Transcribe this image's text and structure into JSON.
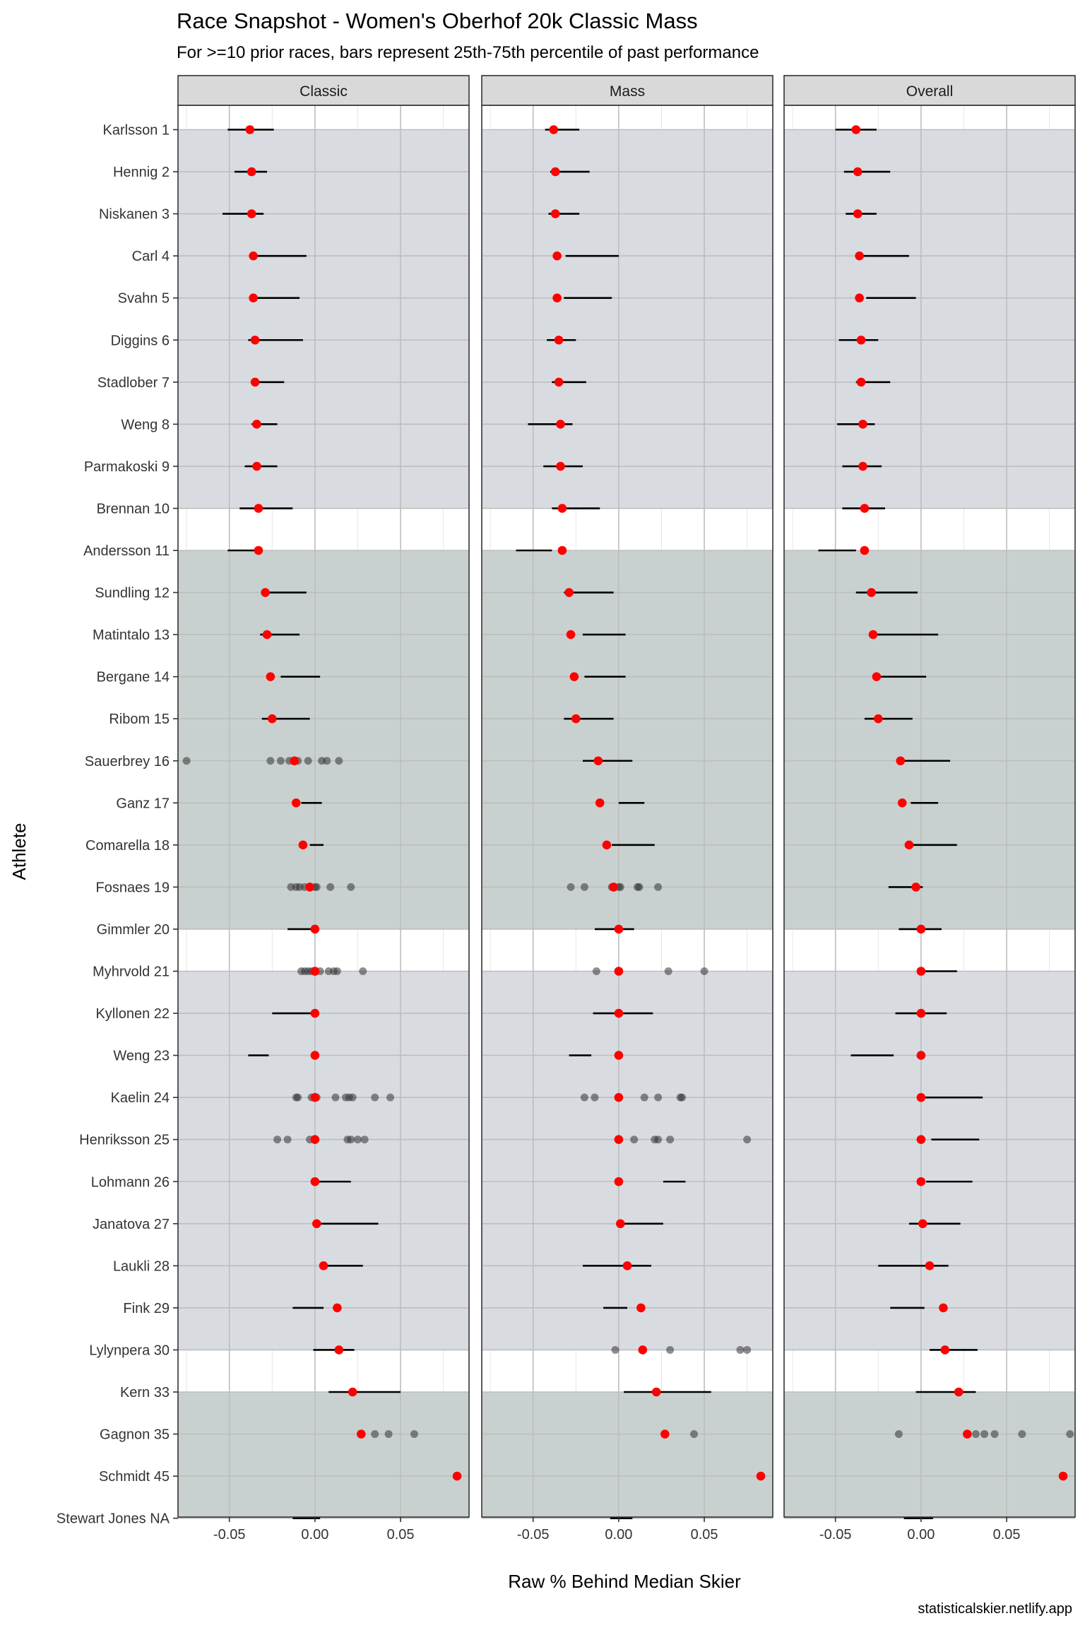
{
  "chart_data": {
    "type": "scatter",
    "title": "Race Snapshot -  Women's Oberhof 20k Classic Mass",
    "subtitle": "For >=10 prior races, bars represent 25th-75th percentile of past performance",
    "xlabel": "Raw % Behind Median Skier",
    "ylabel": "Athlete",
    "caption": "statisticalskier.netlify.app",
    "panels": [
      "Classic",
      "Mass",
      "Overall"
    ],
    "xlim": [
      -0.08,
      0.09
    ],
    "x_ticks": [
      -0.05,
      0.0,
      0.05
    ],
    "x_tick_labels": [
      "-0.05",
      "0.00",
      "0.05"
    ],
    "athletes": [
      "Karlsson 1",
      "Hennig 2",
      "Niskanen 3",
      "Carl 4",
      "Svahn 5",
      "Diggins 6",
      "Stadlober 7",
      "Weng 8",
      "Parmakoski 9",
      "Brennan 10",
      "Andersson 11",
      "Sundling 12",
      "Matintalo 13",
      "Bergane 14",
      "Ribom 15",
      "Sauerbrey 16",
      "Ganz 17",
      "Comarella 18",
      "Fosnaes 19",
      "Gimmler 20",
      "Myhrvold 21",
      "Kyllonen 22",
      "Weng 23",
      "Kaelin 24",
      "Henriksson 25",
      "Lohmann 26",
      "Janatova 27",
      "Laukli 28",
      "Fink 29",
      "Lylynpera 30",
      "Kern 33",
      "Gagnon 35",
      "Schmidt 45",
      "Stewart Jones NA"
    ],
    "bands": [
      {
        "from": 0,
        "to": 9,
        "color": "#d8dce1"
      },
      {
        "from": 10,
        "to": 19,
        "color": "#c9d1d0"
      },
      {
        "from": 20,
        "to": 29,
        "color": "#d8dce1"
      },
      {
        "from": 30,
        "to": 33,
        "color": "#c9d1d0"
      }
    ],
    "red_points": [
      -0.038,
      -0.037,
      -0.037,
      -0.036,
      -0.036,
      -0.035,
      -0.035,
      -0.034,
      -0.034,
      -0.033,
      -0.033,
      -0.029,
      -0.028,
      -0.026,
      -0.025,
      -0.012,
      -0.011,
      -0.007,
      -0.003,
      0.0,
      0.0,
      0.0,
      0.0,
      0.0,
      0.0,
      0.0,
      0.001,
      0.005,
      0.013,
      0.014,
      0.022,
      0.027,
      0.083,
      null
    ],
    "iqr": {
      "Classic": [
        [
          -0.051,
          -0.024
        ],
        [
          -0.047,
          -0.028
        ],
        [
          -0.054,
          -0.03
        ],
        [
          -0.036,
          -0.005
        ],
        [
          -0.036,
          -0.009
        ],
        [
          -0.039,
          -0.007
        ],
        [
          -0.035,
          -0.018
        ],
        [
          -0.037,
          -0.022
        ],
        [
          -0.041,
          -0.022
        ],
        [
          -0.044,
          -0.013
        ],
        [
          -0.051,
          -0.035
        ],
        [
          -0.03,
          -0.005
        ],
        [
          -0.032,
          -0.009
        ],
        [
          -0.02,
          0.003
        ],
        [
          -0.031,
          -0.003
        ],
        null,
        [
          -0.008,
          0.004
        ],
        [
          -0.003,
          0.005
        ],
        null,
        [
          -0.016,
          0.0
        ],
        null,
        [
          -0.025,
          0.0
        ],
        [
          -0.039,
          -0.027
        ],
        null,
        null,
        [
          0.0,
          0.021
        ],
        [
          0.0,
          0.037
        ],
        [
          0.004,
          0.028
        ],
        [
          -0.013,
          0.005
        ],
        [
          -0.001,
          0.023
        ],
        [
          0.008,
          0.05
        ],
        null,
        null,
        [
          -0.013,
          0.003
        ]
      ],
      "Mass": [
        [
          -0.043,
          -0.023
        ],
        [
          -0.04,
          -0.017
        ],
        [
          -0.041,
          -0.023
        ],
        [
          -0.031,
          0.0
        ],
        [
          -0.032,
          -0.004
        ],
        [
          -0.042,
          -0.025
        ],
        [
          -0.039,
          -0.019
        ],
        [
          -0.053,
          -0.027
        ],
        [
          -0.044,
          -0.021
        ],
        [
          -0.039,
          -0.011
        ],
        [
          -0.06,
          -0.039
        ],
        [
          -0.032,
          -0.003
        ],
        [
          -0.021,
          0.004
        ],
        [
          -0.02,
          0.004
        ],
        [
          -0.032,
          -0.003
        ],
        [
          -0.021,
          0.008
        ],
        [
          0.0,
          0.015
        ],
        [
          -0.004,
          0.021
        ],
        null,
        [
          -0.014,
          0.009
        ],
        null,
        [
          -0.015,
          0.02
        ],
        [
          -0.029,
          -0.016
        ],
        null,
        null,
        [
          0.026,
          0.039
        ],
        [
          0.0,
          0.026
        ],
        [
          -0.021,
          0.019
        ],
        [
          -0.009,
          0.005
        ],
        null,
        [
          0.003,
          0.054
        ],
        null,
        null,
        [
          -0.005,
          0.008
        ]
      ],
      "Overall": [
        [
          -0.05,
          -0.026
        ],
        [
          -0.045,
          -0.018
        ],
        [
          -0.044,
          -0.026
        ],
        [
          -0.036,
          -0.007
        ],
        [
          -0.032,
          -0.003
        ],
        [
          -0.048,
          -0.025
        ],
        [
          -0.038,
          -0.018
        ],
        [
          -0.049,
          -0.027
        ],
        [
          -0.046,
          -0.023
        ],
        [
          -0.046,
          -0.021
        ],
        [
          -0.06,
          -0.038
        ],
        [
          -0.038,
          -0.002
        ],
        [
          -0.027,
          0.01
        ],
        [
          -0.024,
          0.003
        ],
        [
          -0.033,
          -0.005
        ],
        [
          -0.013,
          0.017
        ],
        [
          -0.006,
          0.01
        ],
        [
          -0.008,
          0.021
        ],
        [
          -0.019,
          0.001
        ],
        [
          -0.013,
          0.012
        ],
        [
          0.0,
          0.021
        ],
        [
          -0.015,
          0.015
        ],
        [
          -0.041,
          -0.016
        ],
        [
          0.0,
          0.036
        ],
        [
          0.006,
          0.034
        ],
        [
          0.003,
          0.03
        ],
        [
          -0.007,
          0.023
        ],
        [
          -0.025,
          0.016
        ],
        [
          -0.018,
          0.002
        ],
        [
          0.005,
          0.033
        ],
        [
          -0.003,
          0.032
        ],
        null,
        null,
        [
          -0.01,
          0.007
        ]
      ]
    },
    "prior_races": {
      "Classic": {
        "15": [
          -0.075,
          -0.026,
          -0.02,
          -0.015,
          -0.01,
          -0.004,
          0.004,
          0.007,
          0.014
        ],
        "18": [
          -0.014,
          -0.011,
          -0.009,
          -0.006,
          -0.003,
          0.0,
          0.001,
          0.009,
          0.021
        ],
        "20": [
          -0.008,
          -0.006,
          -0.004,
          -0.002,
          0.0,
          0.003,
          0.008,
          0.011,
          0.013,
          0.028
        ],
        "23": [
          -0.011,
          -0.01,
          -0.002,
          0.001,
          0.012,
          0.018,
          0.02,
          0.022,
          0.035,
          0.044
        ],
        "24": [
          -0.022,
          -0.016,
          -0.003,
          0.0,
          0.019,
          0.021,
          0.025,
          0.029
        ],
        "31": [
          0.035,
          0.043,
          0.058
        ]
      },
      "Mass": {
        "18": [
          -0.028,
          -0.02,
          -0.004,
          0.0,
          0.001,
          0.011,
          0.012,
          0.023
        ],
        "20": [
          -0.013,
          0.029,
          0.05
        ],
        "23": [
          -0.02,
          -0.014,
          0.015,
          0.023,
          0.036,
          0.037
        ],
        "24": [
          0.009,
          0.021,
          0.023,
          0.03,
          0.075
        ],
        "29": [
          -0.002,
          0.03,
          0.071,
          0.075
        ],
        "31": [
          0.044
        ]
      },
      "Overall": {
        "31": [
          -0.013,
          0.032,
          0.037,
          0.043,
          0.059,
          0.087
        ]
      }
    },
    "colors": {
      "point": "#ff0000",
      "prior_point": "#333333",
      "iqr_line": "#000000",
      "panel_grid_major": "#bdbdbd",
      "panel_grid_minor": "#e6e6e6",
      "strip_fill": "#d9d9d9",
      "axis_text": "#4d4d4d"
    },
    "grid": true,
    "legend": "none"
  }
}
